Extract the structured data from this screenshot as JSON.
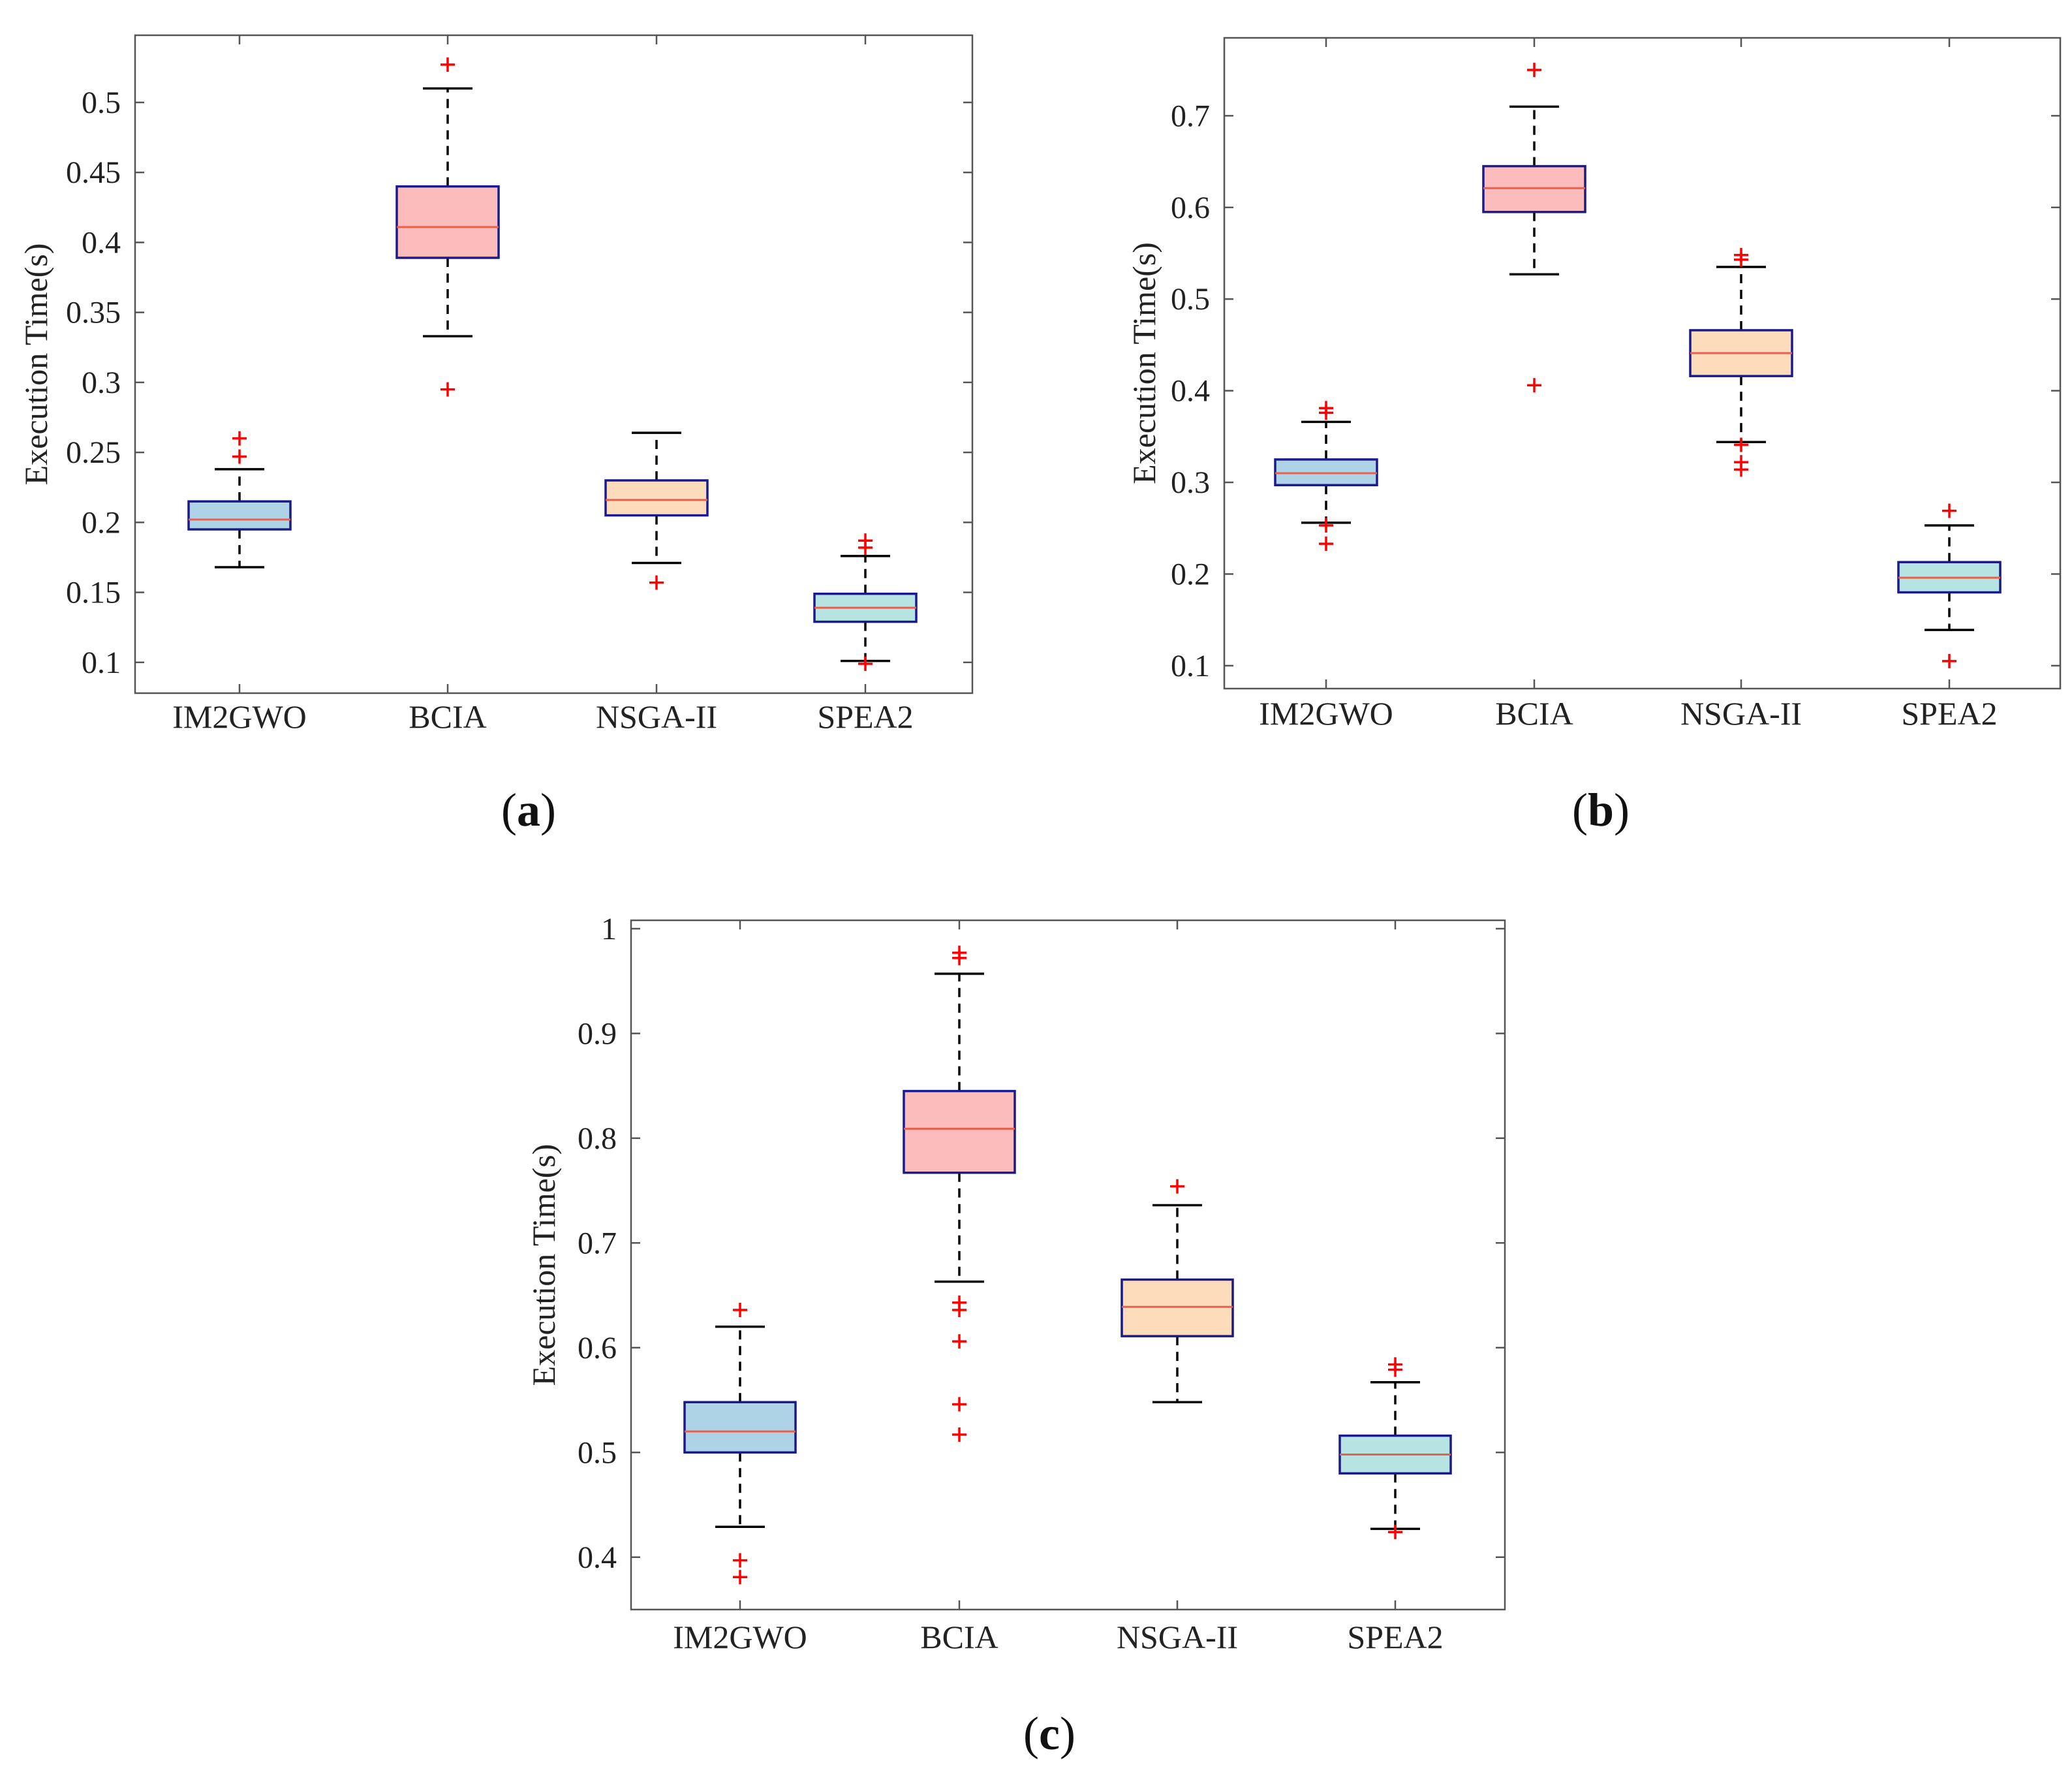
{
  "colors": {
    "box_edge": "#1a1a8c",
    "median": "#e8604c",
    "whisker": "#000000",
    "outlier": "#ff0000",
    "axes": "#555555"
  },
  "chart_data": [
    {
      "id": "a",
      "type": "boxplot",
      "panel_label": "a",
      "ylabel": "Execution Time(s)",
      "ylim": [
        0.078,
        0.548
      ],
      "yticks": [
        0.1,
        0.15,
        0.2,
        0.25,
        0.3,
        0.35,
        0.4,
        0.45,
        0.5
      ],
      "ytick_labels": [
        "0.1",
        "0.15",
        "0.2",
        "0.25",
        "0.3",
        "0.35",
        "0.4",
        "0.45",
        "0.5"
      ],
      "categories": [
        "IM2GWO",
        "BCIA",
        "NSGA-II",
        "SPEA2"
      ],
      "boxes": [
        {
          "name": "IM2GWO",
          "fill": "#aed3e6",
          "whisker_low": 0.168,
          "q1": 0.195,
          "median": 0.202,
          "q3": 0.215,
          "whisker_high": 0.238,
          "outliers": [
            0.26,
            0.247
          ]
        },
        {
          "name": "BCIA",
          "fill": "#fdbcbc",
          "whisker_low": 0.333,
          "q1": 0.389,
          "median": 0.411,
          "q3": 0.44,
          "whisker_high": 0.51,
          "outliers": [
            0.527,
            0.295
          ]
        },
        {
          "name": "NSGA-II",
          "fill": "#fddcbb",
          "whisker_low": 0.171,
          "q1": 0.205,
          "median": 0.216,
          "q3": 0.23,
          "whisker_high": 0.264,
          "outliers": [
            0.157
          ]
        },
        {
          "name": "SPEA2",
          "fill": "#b5e4e2",
          "whisker_low": 0.101,
          "q1": 0.129,
          "median": 0.139,
          "q3": 0.149,
          "whisker_high": 0.176,
          "outliers": [
            0.187,
            0.182,
            0.099
          ]
        }
      ]
    },
    {
      "id": "b",
      "type": "boxplot",
      "panel_label": "b",
      "ylabel": "Execution Time(s)",
      "ylim": [
        0.075,
        0.785
      ],
      "yticks": [
        0.1,
        0.2,
        0.3,
        0.4,
        0.5,
        0.6,
        0.7
      ],
      "ytick_labels": [
        "0.1",
        "0.2",
        "0.3",
        "0.4",
        "0.5",
        "0.6",
        "0.7"
      ],
      "categories": [
        "IM2GWO",
        "BCIA",
        "NSGA-II",
        "SPEA2"
      ],
      "boxes": [
        {
          "name": "IM2GWO",
          "fill": "#aed3e6",
          "whisker_low": 0.256,
          "q1": 0.297,
          "median": 0.31,
          "q3": 0.325,
          "whisker_high": 0.366,
          "outliers": [
            0.381,
            0.376,
            0.253,
            0.233
          ]
        },
        {
          "name": "BCIA",
          "fill": "#fdbcbc",
          "whisker_low": 0.527,
          "q1": 0.595,
          "median": 0.621,
          "q3": 0.645,
          "whisker_high": 0.71,
          "outliers": [
            0.75,
            0.406
          ]
        },
        {
          "name": "NSGA-II",
          "fill": "#fddcbb",
          "whisker_low": 0.344,
          "q1": 0.416,
          "median": 0.441,
          "q3": 0.466,
          "whisker_high": 0.535,
          "outliers": [
            0.548,
            0.543,
            0.341,
            0.322,
            0.314
          ]
        },
        {
          "name": "SPEA2",
          "fill": "#b5e4e2",
          "whisker_low": 0.139,
          "q1": 0.18,
          "median": 0.196,
          "q3": 0.213,
          "whisker_high": 0.253,
          "outliers": [
            0.269,
            0.105
          ]
        }
      ]
    },
    {
      "id": "c",
      "type": "boxplot",
      "panel_label": "c",
      "ylabel": "Execution Time(s)",
      "ylim": [
        0.35,
        1.008
      ],
      "yticks": [
        0.4,
        0.5,
        0.6,
        0.7,
        0.8,
        0.9,
        1.0
      ],
      "ytick_labels": [
        "0.4",
        "0.5",
        "0.6",
        "0.7",
        "0.8",
        "0.9",
        "1"
      ],
      "categories": [
        "IM2GWO",
        "BCIA",
        "NSGA-II",
        "SPEA2"
      ],
      "boxes": [
        {
          "name": "IM2GWO",
          "fill": "#aed3e6",
          "whisker_low": 0.429,
          "q1": 0.5,
          "median": 0.52,
          "q3": 0.548,
          "whisker_high": 0.62,
          "outliers": [
            0.636,
            0.397,
            0.381
          ]
        },
        {
          "name": "BCIA",
          "fill": "#fdbcbc",
          "whisker_low": 0.663,
          "q1": 0.767,
          "median": 0.809,
          "q3": 0.845,
          "whisker_high": 0.957,
          "outliers": [
            0.977,
            0.972,
            0.643,
            0.636,
            0.606,
            0.546,
            0.517
          ]
        },
        {
          "name": "NSGA-II",
          "fill": "#fddcbb",
          "whisker_low": 0.548,
          "q1": 0.611,
          "median": 0.639,
          "q3": 0.665,
          "whisker_high": 0.736,
          "outliers": [
            0.754
          ]
        },
        {
          "name": "SPEA2",
          "fill": "#b5e4e2",
          "whisker_low": 0.427,
          "q1": 0.48,
          "median": 0.498,
          "q3": 0.516,
          "whisker_high": 0.567,
          "outliers": [
            0.584,
            0.579,
            0.424
          ]
        }
      ]
    }
  ]
}
